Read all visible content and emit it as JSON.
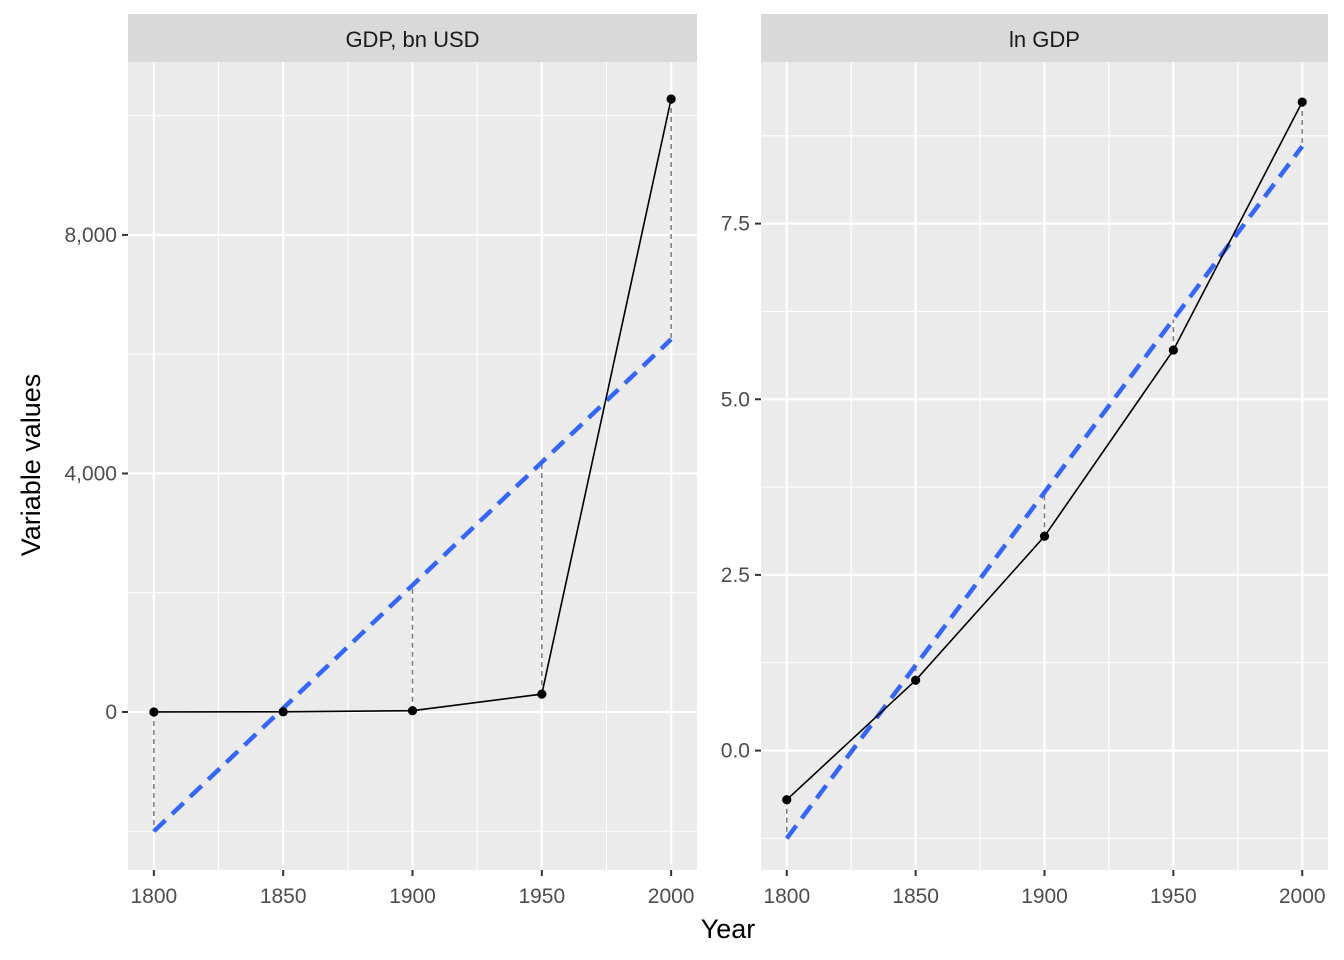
{
  "chart_data": {
    "type": "line",
    "xlabel": "Year",
    "ylabel": "Variable values",
    "colors": {
      "panel_bg": "#EBEBEB",
      "strip_bg": "#D9D9D9",
      "grid": "#FFFFFF",
      "data_line": "#000000",
      "fit_line": "#3366FF",
      "residual": "#7F7F7F"
    },
    "panels": [
      {
        "title": "GDP, bn USD",
        "xlim": [
          1790,
          2010
        ],
        "ylim": [
          -2650,
          10900
        ],
        "x_ticks": [
          1800,
          1850,
          1900,
          1950,
          2000
        ],
        "x_tick_labels": [
          "1800",
          "1850",
          "1900",
          "1950",
          "2000"
        ],
        "y_ticks": [
          0,
          4000,
          8000
        ],
        "y_tick_labels": [
          "0",
          "4,000",
          "8,000"
        ],
        "series": [
          {
            "x": [
              1800,
              1850,
              1900,
              1950,
              2000
            ],
            "values": [
              0.5,
              2.7,
              21,
              300,
              10280
            ]
          }
        ],
        "fit": {
          "x": [
            1800,
            2000
          ],
          "values": [
            -2000,
            6250
          ]
        }
      },
      {
        "title": "ln GDP",
        "xlim": [
          1790,
          2010
        ],
        "ylim": [
          -1.7,
          9.8
        ],
        "x_ticks": [
          1800,
          1850,
          1900,
          1950,
          2000
        ],
        "x_tick_labels": [
          "1800",
          "1850",
          "1900",
          "1950",
          "2000"
        ],
        "y_ticks": [
          0,
          2.5,
          5,
          7.5
        ],
        "y_tick_labels": [
          "0.0",
          "2.5",
          "5.0",
          "7.5"
        ],
        "series": [
          {
            "x": [
              1800,
              1850,
              1900,
              1950,
              2000
            ],
            "values": [
              -0.7,
              1.0,
              3.05,
              5.7,
              9.23
            ]
          }
        ],
        "fit": {
          "x": [
            1800,
            2000
          ],
          "values": [
            -1.25,
            8.6
          ]
        }
      }
    ]
  }
}
